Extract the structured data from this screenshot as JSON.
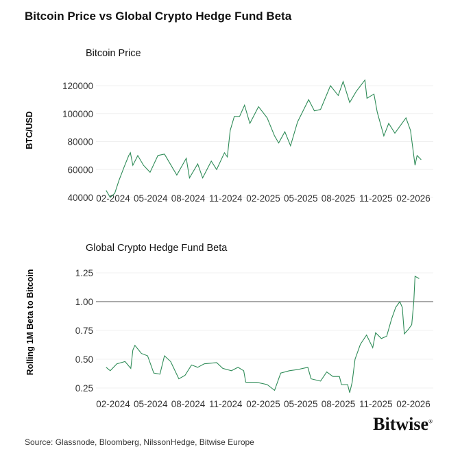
{
  "title": "Bitcoin Price vs Global Crypto Hedge Fund Beta",
  "source": "Source: Glassnode, Bloomberg, NilssonHedge, Bitwise Europe",
  "logo": "Bitwise",
  "line_color": "#2e8b57",
  "chart_data": [
    {
      "type": "line",
      "title": "Bitcoin Price",
      "ylabel": "BTC/USD",
      "xlabel": "",
      "xticks": [
        "02-2024",
        "05-2024",
        "08-2024",
        "11-2024",
        "02-2025",
        "05-2025",
        "08-2025",
        "11-2025",
        "02-2026"
      ],
      "yticks": [
        40000,
        60000,
        80000,
        100000,
        120000
      ],
      "ylim": [
        40000,
        120000
      ],
      "grid": true,
      "x": [
        "2024-01-15",
        "2024-01-25",
        "2024-02-05",
        "2024-02-15",
        "2024-02-28",
        "2024-03-10",
        "2024-03-14",
        "2024-03-20",
        "2024-04-01",
        "2024-04-15",
        "2024-05-01",
        "2024-05-20",
        "2024-06-05",
        "2024-06-25",
        "2024-07-05",
        "2024-07-28",
        "2024-08-05",
        "2024-08-25",
        "2024-09-06",
        "2024-09-27",
        "2024-10-10",
        "2024-10-29",
        "2024-11-05",
        "2024-11-12",
        "2024-11-22",
        "2024-12-05",
        "2024-12-17",
        "2024-12-30",
        "2025-01-20",
        "2025-02-10",
        "2025-02-28",
        "2025-03-10",
        "2025-03-25",
        "2025-04-08",
        "2025-04-25",
        "2025-05-22",
        "2025-06-05",
        "2025-06-20",
        "2025-07-14",
        "2025-08-02",
        "2025-08-14",
        "2025-08-30",
        "2025-09-15",
        "2025-10-06",
        "2025-10-11",
        "2025-10-28",
        "2025-11-05",
        "2025-11-21",
        "2025-12-03",
        "2025-12-18",
        "2026-01-14",
        "2026-01-25",
        "2026-02-05",
        "2026-02-10",
        "2026-02-20"
      ],
      "values": [
        45000,
        40000,
        43000,
        52000,
        62000,
        70000,
        72000,
        63000,
        70000,
        63000,
        58000,
        70000,
        71000,
        61000,
        56000,
        68000,
        54000,
        64000,
        54000,
        66000,
        60000,
        72000,
        69000,
        88000,
        98000,
        98000,
        106000,
        93000,
        105000,
        97000,
        84000,
        79000,
        87000,
        77000,
        94000,
        110000,
        102000,
        103000,
        120000,
        113000,
        123000,
        108000,
        116000,
        124000,
        111000,
        114000,
        101000,
        84000,
        93000,
        86000,
        97000,
        88000,
        63000,
        70000,
        67000
      ]
    },
    {
      "type": "line",
      "title": "Global Crypto Hedge Fund Beta",
      "ylabel": "Rolling 1M Beta to Bitcoin",
      "xlabel": "",
      "xticks": [
        "02-2024",
        "05-2024",
        "08-2024",
        "11-2024",
        "02-2025",
        "05-2025",
        "08-2025",
        "11-2025",
        "02-2026"
      ],
      "yticks": [
        "0.25",
        "0.50",
        "0.75",
        "1.00",
        "1.25"
      ],
      "ylim": [
        0.25,
        1.25
      ],
      "grid": true,
      "reference_line": 1.0,
      "x": [
        "2024-01-15",
        "2024-01-25",
        "2024-02-10",
        "2024-03-01",
        "2024-03-15",
        "2024-03-20",
        "2024-03-25",
        "2024-04-10",
        "2024-04-25",
        "2024-05-10",
        "2024-05-25",
        "2024-06-05",
        "2024-06-20",
        "2024-07-10",
        "2024-07-25",
        "2024-08-10",
        "2024-08-25",
        "2024-09-10",
        "2024-10-10",
        "2024-10-25",
        "2024-11-15",
        "2024-12-01",
        "2024-12-15",
        "2024-12-20",
        "2025-01-15",
        "2025-02-10",
        "2025-02-28",
        "2025-03-15",
        "2025-04-05",
        "2025-04-25",
        "2025-05-20",
        "2025-05-28",
        "2025-06-20",
        "2025-07-05",
        "2025-07-20",
        "2025-08-05",
        "2025-08-10",
        "2025-08-25",
        "2025-08-30",
        "2025-09-05",
        "2025-09-12",
        "2025-09-25",
        "2025-10-10",
        "2025-10-25",
        "2025-11-01",
        "2025-11-15",
        "2025-11-28",
        "2025-12-10",
        "2025-12-20",
        "2025-12-30",
        "2026-01-05",
        "2026-01-10",
        "2026-01-20",
        "2026-01-28",
        "2026-02-02",
        "2026-02-05",
        "2026-02-15"
      ],
      "values": [
        0.43,
        0.4,
        0.46,
        0.48,
        0.42,
        0.58,
        0.62,
        0.55,
        0.53,
        0.38,
        0.37,
        0.53,
        0.48,
        0.33,
        0.36,
        0.45,
        0.43,
        0.46,
        0.47,
        0.42,
        0.4,
        0.43,
        0.4,
        0.3,
        0.3,
        0.28,
        0.23,
        0.38,
        0.4,
        0.41,
        0.43,
        0.33,
        0.31,
        0.39,
        0.35,
        0.35,
        0.28,
        0.28,
        0.21,
        0.3,
        0.5,
        0.63,
        0.71,
        0.6,
        0.73,
        0.68,
        0.7,
        0.85,
        0.95,
        1.0,
        0.95,
        0.72,
        0.76,
        0.8,
        1.0,
        1.22,
        1.2
      ]
    }
  ]
}
